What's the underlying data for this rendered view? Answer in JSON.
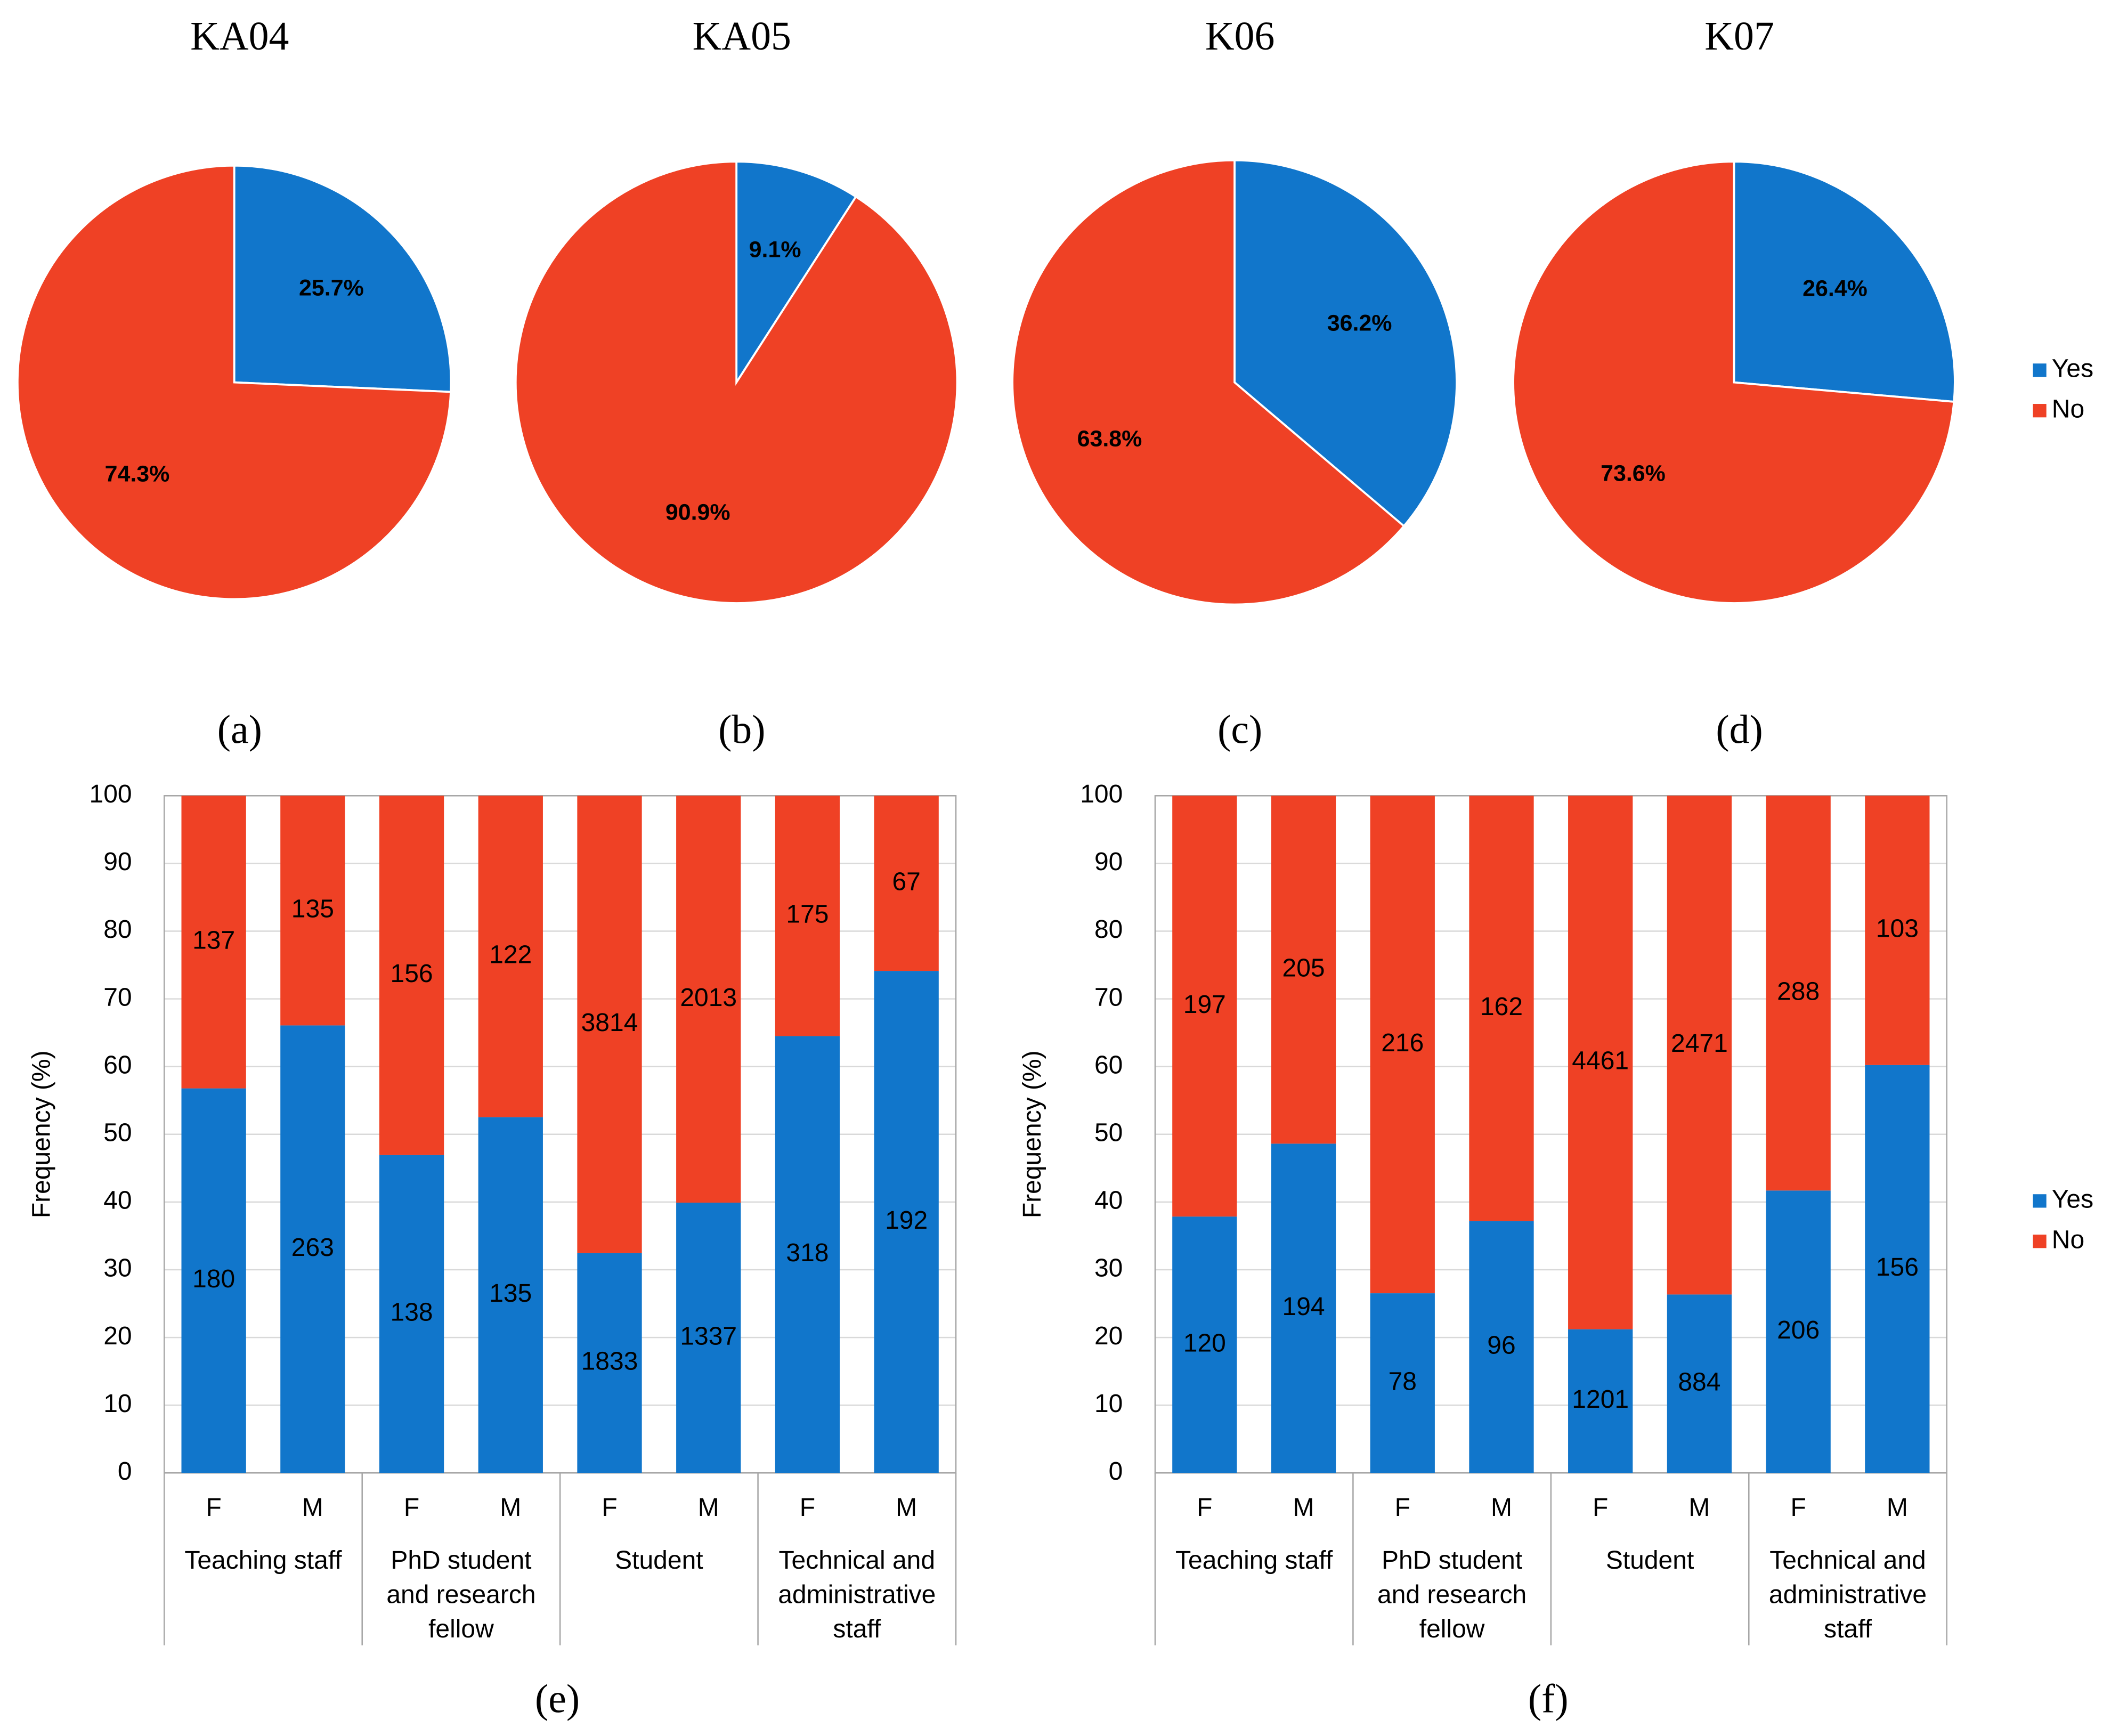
{
  "chart_data": [
    {
      "type": "pie",
      "title": "KA04",
      "caption": "(a)",
      "categories": [
        "Yes",
        "No"
      ],
      "values": [
        25.7,
        74.3
      ],
      "value_labels": [
        "25.7%",
        "74.3%"
      ],
      "colors": [
        "#1176cb",
        "#ef4125"
      ],
      "legend": "none"
    },
    {
      "type": "pie",
      "title": "KA05",
      "caption": "(b)",
      "categories": [
        "Yes",
        "No"
      ],
      "values": [
        9.1,
        90.9
      ],
      "value_labels": [
        "9.1%",
        "90.9%"
      ],
      "colors": [
        "#1176cb",
        "#ef4125"
      ],
      "legend": "none"
    },
    {
      "type": "pie",
      "title": "K06",
      "caption": "(c)",
      "categories": [
        "Yes",
        "No"
      ],
      "values": [
        36.2,
        63.8
      ],
      "value_labels": [
        "36.2%",
        "63.8%"
      ],
      "colors": [
        "#1176cb",
        "#ef4125"
      ],
      "legend": "none"
    },
    {
      "type": "pie",
      "title": "K07",
      "caption": "(d)",
      "categories": [
        "Yes",
        "No"
      ],
      "values": [
        26.4,
        73.6
      ],
      "value_labels": [
        "26.4%",
        "73.6%"
      ],
      "colors": [
        "#1176cb",
        "#ef4125"
      ],
      "legend": "right"
    },
    {
      "type": "bar",
      "stacking": "percent",
      "caption": "(e)",
      "y_label": "Frequency (%)",
      "groups": [
        {
          "name": "Teaching staff",
          "categories": [
            "F",
            "M"
          ]
        },
        {
          "name": "PhD student\nand research\nfellow",
          "categories": [
            "F",
            "M"
          ]
        },
        {
          "name": "Student",
          "categories": [
            "F",
            "M"
          ]
        },
        {
          "name": "Technical and\nadministrative\nstaff",
          "categories": [
            "F",
            "M"
          ]
        }
      ],
      "series": [
        {
          "name": "Yes",
          "color": "#1176cb",
          "values": [
            180,
            263,
            138,
            135,
            1833,
            1337,
            318,
            192
          ]
        },
        {
          "name": "No",
          "color": "#ef4125",
          "values": [
            137,
            135,
            156,
            122,
            3814,
            2013,
            175,
            67
          ]
        }
      ],
      "ylim": [
        0,
        100
      ],
      "yticks": [
        0,
        10,
        20,
        30,
        40,
        50,
        60,
        70,
        80,
        90,
        100
      ],
      "grid": true,
      "legend": "none"
    },
    {
      "type": "bar",
      "stacking": "percent",
      "caption": "(f)",
      "y_label": "Frequency (%)",
      "groups": [
        {
          "name": "Teaching staff",
          "categories": [
            "F",
            "M"
          ]
        },
        {
          "name": "PhD student\nand research\nfellow",
          "categories": [
            "F",
            "M"
          ]
        },
        {
          "name": "Student",
          "categories": [
            "F",
            "M"
          ]
        },
        {
          "name": "Technical and\nadministrative\nstaff",
          "categories": [
            "F",
            "M"
          ]
        }
      ],
      "series": [
        {
          "name": "Yes",
          "color": "#1176cb",
          "values": [
            120,
            194,
            78,
            96,
            1201,
            884,
            206,
            156
          ]
        },
        {
          "name": "No",
          "color": "#ef4125",
          "values": [
            197,
            205,
            216,
            162,
            4461,
            2471,
            288,
            103
          ]
        }
      ],
      "ylim": [
        0,
        100
      ],
      "yticks": [
        0,
        10,
        20,
        30,
        40,
        50,
        60,
        70,
        80,
        90,
        100
      ],
      "grid": true,
      "legend": "right"
    }
  ]
}
